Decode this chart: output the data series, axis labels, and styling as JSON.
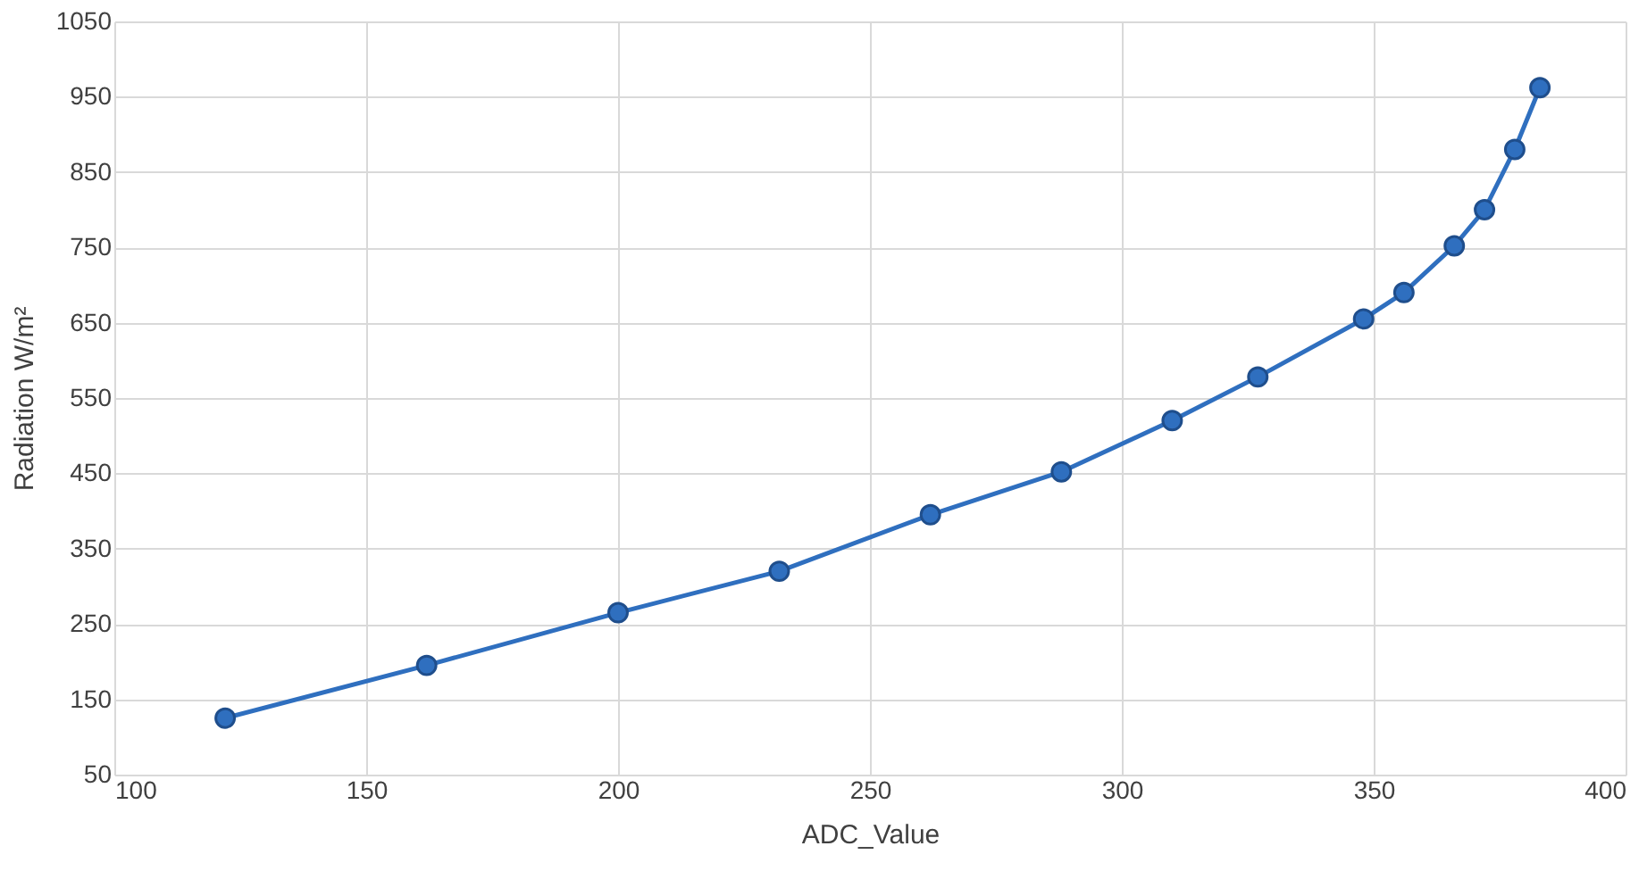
{
  "chart_data": {
    "type": "line",
    "xlabel": "ADC_Value",
    "ylabel": "Radiation W/m²",
    "x": [
      122,
      162,
      200,
      232,
      262,
      288,
      310,
      327,
      348,
      356,
      366,
      372,
      378,
      383
    ],
    "series": [
      {
        "color": "#2f6fbf",
        "values": [
          125,
          195,
          265,
          320,
          395,
          452,
          520,
          578,
          655,
          690,
          752,
          800,
          880,
          962
        ]
      }
    ],
    "xlim": [
      100,
      400
    ],
    "xticks": [
      100,
      150,
      200,
      250,
      300,
      350,
      400
    ],
    "ylim": [
      50,
      1050
    ],
    "yticks": [
      50,
      150,
      250,
      350,
      450,
      550,
      650,
      750,
      850,
      950,
      1050
    ],
    "grid": true,
    "marker": "circle",
    "line_style": "solid"
  }
}
